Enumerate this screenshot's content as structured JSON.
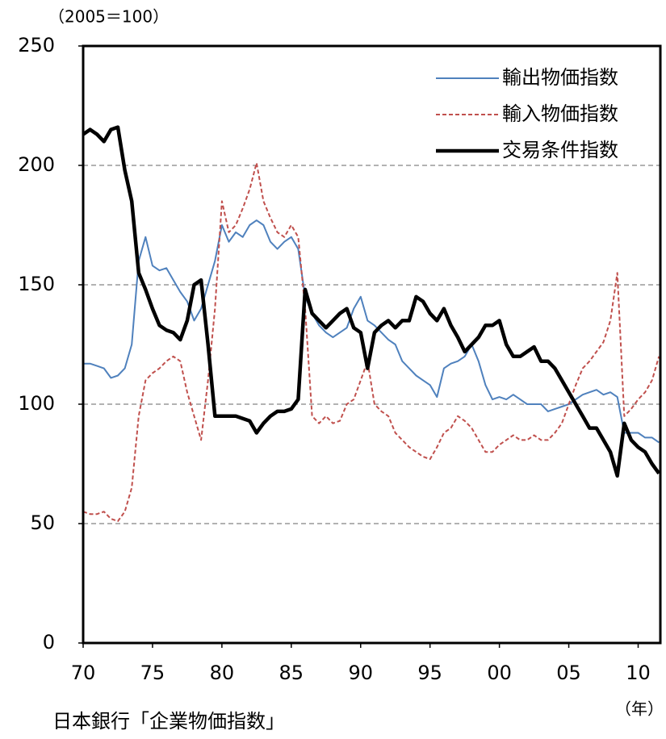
{
  "chart_data": {
    "type": "line",
    "y_unit": "（2005＝100）",
    "x_unit": "（年）",
    "source": "日本銀行「企業物価指数」",
    "x": [
      1970,
      1970.5,
      1971,
      1971.5,
      1972,
      1972.5,
      1973,
      1973.5,
      1974,
      1974.5,
      1975,
      1975.5,
      1976,
      1976.5,
      1977,
      1977.5,
      1978,
      1978.5,
      1979,
      1979.5,
      1980,
      1980.5,
      1981,
      1981.5,
      1982,
      1982.5,
      1983,
      1983.5,
      1984,
      1984.5,
      1985,
      1985.5,
      1986,
      1986.5,
      1987,
      1987.5,
      1988,
      1988.5,
      1989,
      1989.5,
      1990,
      1990.5,
      1991,
      1991.5,
      1992,
      1992.5,
      1993,
      1993.5,
      1994,
      1994.5,
      1995,
      1995.5,
      1996,
      1996.5,
      1997,
      1997.5,
      1998,
      1998.5,
      1999,
      1999.5,
      2000,
      2000.5,
      2001,
      2001.5,
      2002,
      2002.5,
      2003,
      2003.5,
      2004,
      2004.5,
      2005,
      2005.5,
      2006,
      2006.5,
      2007,
      2007.5,
      2008,
      2008.5,
      2009,
      2009.5,
      2010,
      2010.5,
      2011,
      2011.5
    ],
    "series": [
      {
        "name": "輸出物価指数",
        "color": "#4f81bd",
        "line_style": "solid",
        "values": [
          117,
          117,
          116,
          115,
          111,
          112,
          115,
          125,
          160,
          170,
          158,
          156,
          157,
          152,
          147,
          143,
          135,
          140,
          150,
          160,
          175,
          168,
          172,
          170,
          175,
          177,
          175,
          168,
          165,
          168,
          170,
          165,
          145,
          138,
          133,
          130,
          128,
          130,
          132,
          140,
          145,
          135,
          133,
          130,
          127,
          125,
          118,
          115,
          112,
          110,
          108,
          103,
          115,
          117,
          118,
          120,
          125,
          118,
          108,
          102,
          103,
          102,
          104,
          102,
          100,
          100,
          100,
          97,
          98,
          99,
          100,
          102,
          104,
          105,
          106,
          104,
          105,
          103,
          88,
          88,
          88,
          86,
          86,
          84
        ]
      },
      {
        "name": "輸入物価指数",
        "color": "#c0504d",
        "line_style": "dashed",
        "values": [
          55,
          54,
          54,
          55,
          52,
          51,
          55,
          65,
          95,
          110,
          113,
          115,
          118,
          120,
          118,
          105,
          95,
          85,
          110,
          140,
          185,
          172,
          175,
          182,
          190,
          201,
          185,
          178,
          172,
          170,
          175,
          170,
          140,
          95,
          92,
          95,
          92,
          93,
          100,
          102,
          110,
          118,
          100,
          97,
          95,
          88,
          85,
          82,
          80,
          78,
          77,
          82,
          88,
          90,
          95,
          93,
          90,
          85,
          80,
          80,
          83,
          85,
          87,
          85,
          85,
          87,
          85,
          85,
          88,
          92,
          100,
          108,
          115,
          118,
          122,
          126,
          135,
          155,
          95,
          98,
          102,
          105,
          110,
          120
        ]
      },
      {
        "name": "交易条件指数",
        "color": "#000000",
        "line_style": "thick",
        "values": [
          213,
          215,
          213,
          210,
          215,
          216,
          198,
          185,
          155,
          148,
          140,
          133,
          131,
          130,
          127,
          135,
          150,
          152,
          125,
          95,
          95,
          95,
          95,
          94,
          93,
          88,
          92,
          95,
          97,
          97,
          98,
          102,
          148,
          138,
          135,
          132,
          135,
          138,
          140,
          132,
          130,
          115,
          130,
          133,
          135,
          132,
          135,
          135,
          145,
          143,
          138,
          135,
          140,
          133,
          128,
          122,
          125,
          128,
          133,
          133,
          135,
          125,
          120,
          120,
          122,
          124,
          118,
          118,
          115,
          110,
          105,
          100,
          95,
          90,
          90,
          85,
          80,
          70,
          92,
          85,
          82,
          80,
          75,
          71
        ]
      }
    ],
    "xlim": [
      1970,
      2011.6
    ],
    "xticks": [
      {
        "value": 1970,
        "label": "70"
      },
      {
        "value": 1975,
        "label": "75"
      },
      {
        "value": 1980,
        "label": "80"
      },
      {
        "value": 1985,
        "label": "85"
      },
      {
        "value": 1990,
        "label": "90"
      },
      {
        "value": 1995,
        "label": "95"
      },
      {
        "value": 2000,
        "label": "00"
      },
      {
        "value": 2005,
        "label": "05"
      },
      {
        "value": 2010,
        "label": "10"
      }
    ],
    "ylim": [
      0,
      250
    ],
    "yticks": [
      0,
      50,
      100,
      150,
      200,
      250
    ],
    "grid": true,
    "legend": "upper right"
  }
}
